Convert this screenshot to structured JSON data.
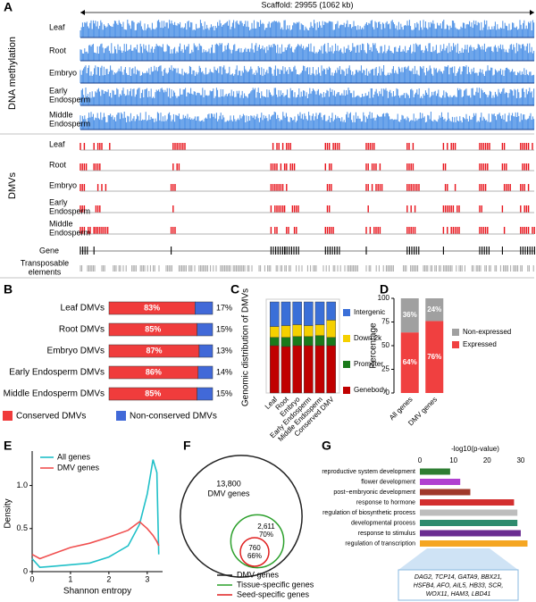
{
  "chart_data": [
    {
      "type": "track",
      "panel": "A",
      "scaffold": "Scaffold: 29955 (1062 kb)",
      "groups": [
        {
          "name": "DNA methylation",
          "color": "#4a8fe6",
          "tracks": [
            [
              "Leaf"
            ],
            [
              "Root"
            ],
            [
              "Embryo"
            ],
            [
              "Early",
              "Endosperm"
            ],
            [
              "Middle",
              "Endosperm"
            ]
          ]
        },
        {
          "name": "DMVs",
          "color": "#e8131b",
          "tracks": [
            [
              "Leaf"
            ],
            [
              "Root"
            ],
            [
              "Embryo"
            ],
            [
              "Early",
              "Endosperm"
            ],
            [
              "Middle",
              "Endosperm"
            ]
          ]
        }
      ],
      "annotations": [
        {
          "name": [
            "Gene"
          ],
          "color": "#000000"
        },
        {
          "name": [
            "Transposable",
            "elements"
          ],
          "color": "#a8a8a8"
        }
      ]
    },
    {
      "type": "hbar_stacked",
      "panel": "B",
      "categories": [
        "Leaf DMVs",
        "Root DMVs",
        "Embryo DMVs",
        "Early Endosperm DMVs",
        "Middle Endosperm DMVs"
      ],
      "series": [
        {
          "name": "Conserved DMVs",
          "color": "#f03c3c",
          "values": [
            83,
            85,
            87,
            86,
            85
          ],
          "value_labels": [
            "83%",
            "85%",
            "87%",
            "86%",
            "85%"
          ]
        },
        {
          "name": "Non-conserved DMVs",
          "color": "#4169d8",
          "values": [
            17,
            15,
            13,
            14,
            15
          ],
          "value_labels": [
            "17%",
            "15%",
            "13%",
            "14%",
            "15%"
          ]
        }
      ],
      "xlim": [
        0,
        100
      ]
    },
    {
      "type": "bar_stacked",
      "panel": "C",
      "y_label": "Genomic distribution of DMVs",
      "categories": [
        "Leaf",
        "Root",
        "Embryo",
        "Early Endosperm",
        "Middle Endosperm",
        "Conserved DMV"
      ],
      "series": [
        {
          "name": "Genebody",
          "color": "#c00000",
          "values": [
            52,
            51,
            52,
            52,
            52,
            52
          ]
        },
        {
          "name": "Promoter",
          "color": "#1a7a1a",
          "values": [
            9,
            10,
            10,
            10,
            11,
            9
          ]
        },
        {
          "name": "Down 2k",
          "color": "#f5d000",
          "values": [
            12,
            13,
            13,
            12,
            12,
            19
          ]
        },
        {
          "name": "Intergenic",
          "color": "#3a6fd8",
          "values": [
            27,
            26,
            25,
            26,
            25,
            20
          ]
        }
      ],
      "ylim": [
        0,
        100
      ]
    },
    {
      "type": "bar_stacked",
      "panel": "D",
      "y_label": "Percentage",
      "categories": [
        "All genes",
        "DMV genes"
      ],
      "series": [
        {
          "name": "Expressed",
          "color": "#f04040",
          "values": [
            64,
            76
          ],
          "value_labels": [
            "64%",
            "76%"
          ]
        },
        {
          "name": "Non-expressed",
          "color": "#a0a0a0",
          "values": [
            36,
            24
          ],
          "value_labels": [
            "36%",
            "24%"
          ]
        }
      ],
      "ylim": [
        0,
        100
      ],
      "yticks": [
        0,
        25,
        50,
        75,
        100
      ]
    },
    {
      "type": "line",
      "panel": "E",
      "x_label": "Shannon entropy",
      "y_label": "Density",
      "x": [
        0,
        0.2,
        0.5,
        1.0,
        1.5,
        2.0,
        2.5,
        2.8,
        3.0,
        3.15,
        3.25,
        3.3
      ],
      "series": [
        {
          "name": "All genes",
          "color": "#20c0c8",
          "values": [
            0.15,
            0.05,
            0.06,
            0.08,
            0.1,
            0.17,
            0.3,
            0.55,
            0.9,
            1.3,
            1.15,
            0.2
          ]
        },
        {
          "name": "DMV genes",
          "color": "#f05050",
          "values": [
            0.2,
            0.15,
            0.2,
            0.28,
            0.33,
            0.4,
            0.48,
            0.58,
            0.5,
            0.42,
            0.35,
            0.3
          ]
        }
      ],
      "xlim": [
        0,
        3.4
      ],
      "ylim": [
        0,
        1.4
      ],
      "xticks": [
        0,
        1,
        2,
        3
      ],
      "yticks": [
        0,
        0.5,
        {
          "value": 1,
          "label": "1.0"
        }
      ]
    },
    {
      "type": "venn",
      "panel": "F",
      "sets": [
        {
          "name": "DMV genes",
          "color": "#222222",
          "count": 13800,
          "count_label": "13,800"
        },
        {
          "name": "Tissue-specific genes",
          "color": "#2ca02c",
          "count": 2611,
          "count_label": "2,611",
          "percent": 70,
          "percent_label": "70%"
        },
        {
          "name": "Seed-specific genes",
          "color": "#e02020",
          "count": 760,
          "count_label": "760",
          "percent": 66,
          "percent_label": "66%"
        }
      ]
    },
    {
      "type": "hbar",
      "panel": "G",
      "title": "-log10(p-value)",
      "categories": [
        "reproductive system development",
        "flower development",
        "post−embryonic development",
        "response to hormone",
        "regulation of biosynthetic process",
        "developmental process",
        "response to stimulus",
        "regulation of transcription"
      ],
      "values": [
        9,
        12,
        15,
        28,
        29,
        29,
        30,
        32
      ],
      "colors": [
        "#2e7d32",
        "#b040d0",
        "#a0392b",
        "#d32f2f",
        "#bdbdbd",
        "#2e8b6e",
        "#6a2c91",
        "#f5a623"
      ],
      "xlim": [
        0,
        34
      ],
      "xticks": [
        0,
        10,
        20,
        30
      ],
      "callout": [
        "DAG2, TCP14, GATA9, BBX21,",
        "HSFB4, AFO, AIL5, HB33, SCR,",
        "WOX11, HAM3, LBD41"
      ]
    }
  ]
}
